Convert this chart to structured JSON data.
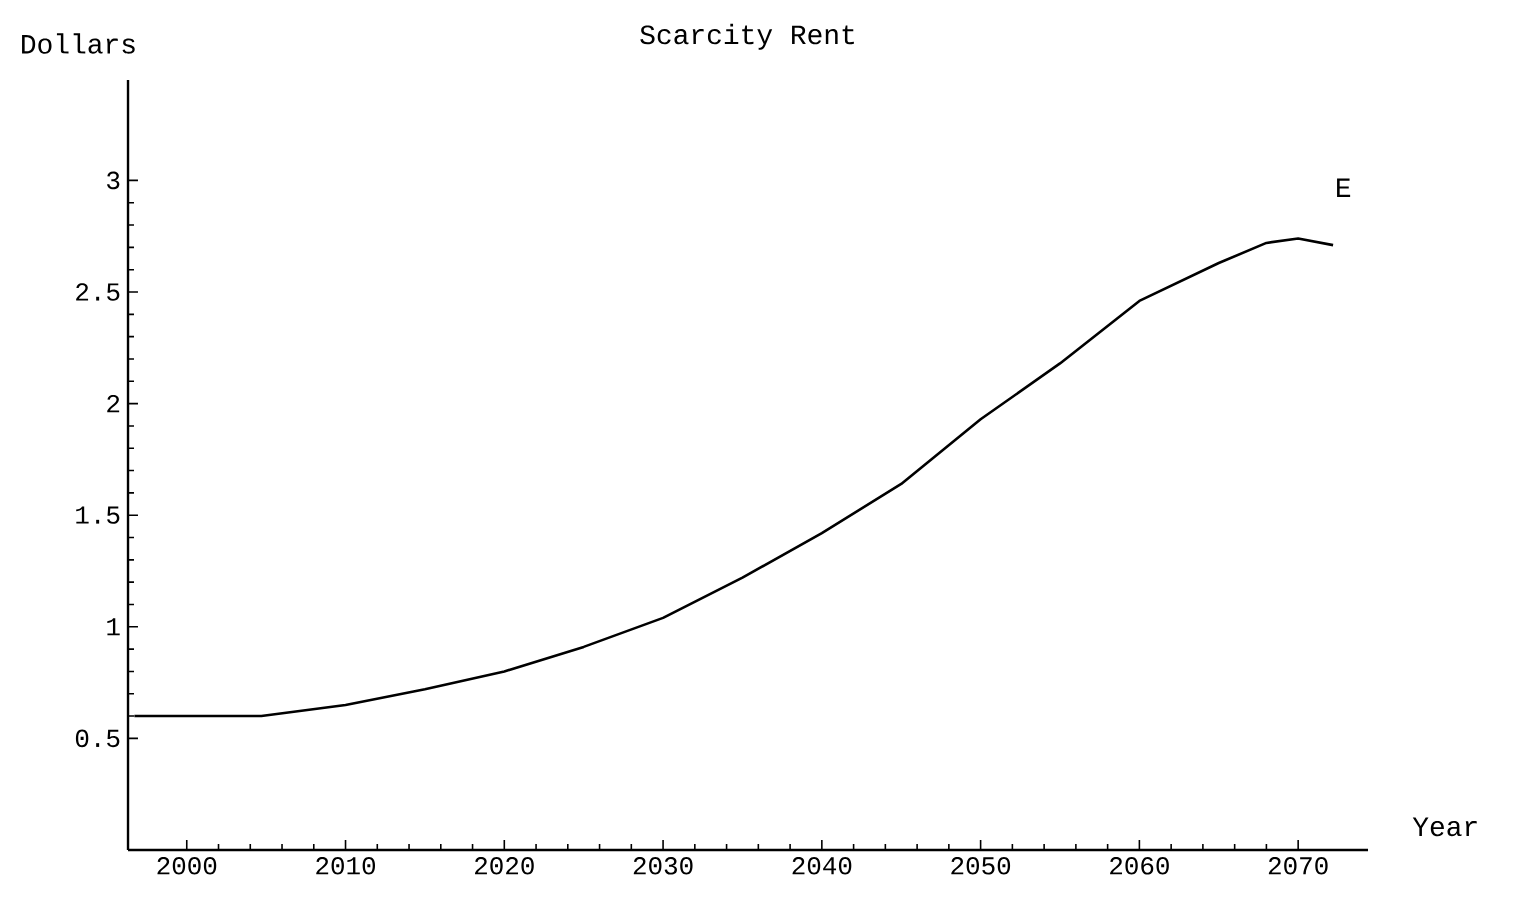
{
  "chart_data": {
    "type": "line",
    "title": "Scarcity Rent",
    "xlabel": "Year",
    "ylabel": "Dollars",
    "x": [
      1996.7,
      2000,
      2004.7,
      2010,
      2015,
      2020,
      2025,
      2030,
      2035,
      2040,
      2045,
      2050,
      2055,
      2060,
      2065,
      2068,
      2070,
      2072.2
    ],
    "series": [
      {
        "color": "#000000",
        "values": [
          0.6,
          0.6,
          0.6,
          0.65,
          0.72,
          0.8,
          0.91,
          1.04,
          1.22,
          1.42,
          1.64,
          1.93,
          2.18,
          2.46,
          2.63,
          2.72,
          2.74,
          2.71
        ]
      }
    ],
    "xlim": [
      1996.3,
      2074.4
    ],
    "ylim": [
      0,
      3.45
    ],
    "xticks": [
      2000,
      2010,
      2020,
      2030,
      2040,
      2050,
      2060,
      2070
    ],
    "yticks": [
      0.5,
      1,
      1.5,
      2,
      2.5,
      3
    ],
    "annotations": [
      "E"
    ],
    "grid": false,
    "marker": "none",
    "line_style": "solid"
  }
}
